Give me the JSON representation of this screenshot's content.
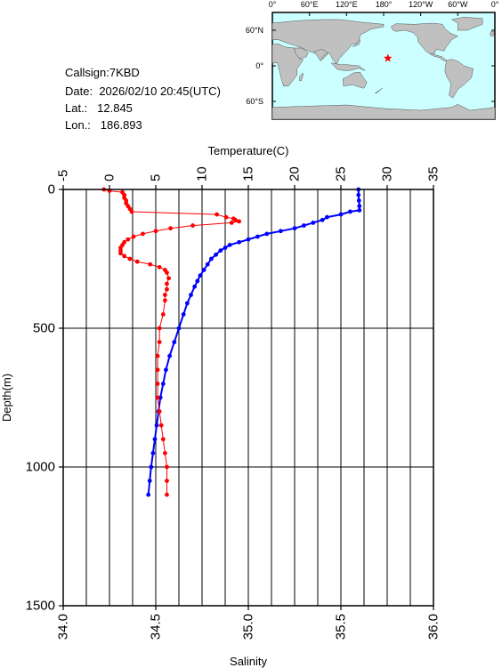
{
  "station": {
    "callsign_label": "Callsign:",
    "callsign": "7KBD",
    "date_label": "Date:",
    "date": "2026/02/10 20:45(UTC)",
    "lat_label": "Lat.:",
    "lat": "12.845",
    "lon_label": "Lon.:",
    "lon": "186.893"
  },
  "map": {
    "top_ticks": [
      "0°",
      "60°E",
      "120°E",
      "180°",
      "120°W",
      "60°W",
      "0°"
    ],
    "lat_ticks": [
      "60°N",
      "0°",
      "60°S"
    ],
    "ocean_color": "#ccffff",
    "land_color": "#c0c0c0",
    "marker_color": "#ff0000",
    "marker_lon": 186.893,
    "marker_lat": 12.845
  },
  "chart_data": {
    "type": "line",
    "xlabel_top": "Temperature(C)",
    "xlabel_bottom": "Salinity",
    "ylabel": "Depth(m)",
    "temperature_ticks": [
      "-5",
      "0",
      "5",
      "10",
      "15",
      "20",
      "25",
      "30",
      "35"
    ],
    "salinity_ticks": [
      "34.0",
      "34.5",
      "35.0",
      "35.5",
      "36.0"
    ],
    "depth_ticks": [
      "0",
      "500",
      "1000",
      "1500"
    ],
    "temperature_range": [
      -5,
      35
    ],
    "salinity_range": [
      34.0,
      36.0
    ],
    "depth_range": [
      0,
      1500
    ],
    "grid": true,
    "series": [
      {
        "name": "",
        "axis": "temperature",
        "color": "#0000ff",
        "depth": [
          0,
          20,
          40,
          60,
          75,
          80,
          90,
          100,
          110,
          120,
          130,
          140,
          150,
          160,
          170,
          180,
          190,
          200,
          210,
          220,
          235,
          250,
          270,
          290,
          310,
          330,
          350,
          380,
          410,
          450,
          500,
          550,
          600,
          650,
          700,
          750,
          800,
          850,
          900,
          950,
          1000,
          1050,
          1100
        ],
        "values": [
          26.9,
          26.9,
          26.95,
          27.0,
          27.0,
          26.0,
          25.0,
          23.5,
          23.0,
          22.0,
          21.0,
          20.0,
          18.5,
          17.0,
          16.0,
          15.0,
          14.0,
          13.0,
          12.5,
          12.0,
          11.5,
          11.0,
          10.6,
          10.2,
          9.8,
          9.5,
          9.2,
          8.8,
          8.4,
          8.0,
          7.5,
          7.0,
          6.5,
          6.1,
          5.8,
          5.5,
          5.3,
          5.1,
          4.9,
          4.7,
          4.5,
          4.35,
          4.2
        ]
      },
      {
        "name": "",
        "axis": "salinity",
        "color": "#ff0000",
        "depth": [
          0,
          5,
          10,
          20,
          30,
          40,
          50,
          60,
          70,
          80,
          90,
          100,
          105,
          110,
          115,
          120,
          130,
          140,
          150,
          160,
          170,
          180,
          190,
          200,
          210,
          220,
          230,
          240,
          250,
          260,
          270,
          280,
          290,
          300,
          320,
          340,
          360,
          380,
          400,
          450,
          500,
          550,
          600,
          650,
          700,
          750,
          800,
          850,
          900,
          950,
          1000,
          1050,
          1100
        ],
        "values": [
          34.22,
          34.25,
          34.32,
          34.33,
          34.33,
          34.34,
          34.34,
          34.35,
          34.36,
          34.37,
          34.83,
          34.88,
          34.92,
          34.93,
          34.95,
          34.91,
          34.7,
          34.58,
          34.5,
          34.43,
          34.38,
          34.35,
          34.33,
          34.32,
          34.31,
          34.31,
          34.31,
          34.33,
          34.36,
          34.4,
          34.47,
          34.52,
          34.55,
          34.56,
          34.57,
          34.56,
          34.56,
          34.55,
          34.55,
          34.54,
          34.52,
          34.52,
          34.51,
          34.51,
          34.51,
          34.51,
          34.52,
          34.53,
          34.54,
          34.55,
          34.56,
          34.56,
          34.56
        ]
      }
    ]
  }
}
